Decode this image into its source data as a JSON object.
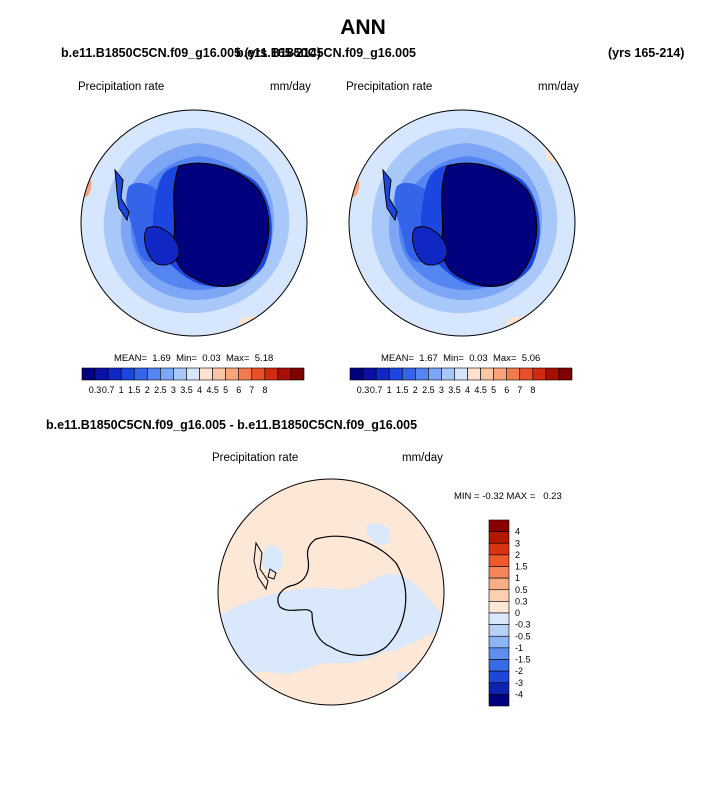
{
  "page_title": "ANN",
  "case_label_left": "b.e11.B1850C5CN.f09_g16.005 (yrs 165-214)",
  "case_label_right": "b.e11.B1850C5CN.f09_g16.005",
  "years_right": "(yrs 165-214)",
  "diff_case_label": "b.e11.B1850C5CN.f09_g16.005 - b.e11.B1850C5CN.f09_g16.005",
  "panels": [
    {
      "variable": "Precipitation rate",
      "units": "mm/day",
      "mean_label": "MEAN=",
      "mean": "1.69",
      "min_label": "Min=",
      "min": "0.03",
      "max_label": "Max=",
      "max": "5.18"
    },
    {
      "variable": "Precipitation rate",
      "units": "mm/day",
      "mean_label": "MEAN=",
      "mean": "1.67",
      "min_label": "Min=",
      "min": "0.03",
      "max_label": "Max=",
      "max": "5.06"
    }
  ],
  "diff_panel": {
    "variable": "Precipitation rate",
    "units": "mm/day",
    "min_label": "MIN =",
    "min": "-0.32",
    "max_label": "MAX =",
    "max": "0.23"
  },
  "colorbar_abs": {
    "labels": [
      "0.3",
      "0.7",
      "1",
      "1.5",
      "2",
      "2.5",
      "3",
      "3.5",
      "4",
      "4.5",
      "5",
      "6",
      "7",
      "8"
    ],
    "colors": [
      "#00007f",
      "#0a0fa6",
      "#1127c4",
      "#1c46e0",
      "#3464ea",
      "#5485f0",
      "#7ea6f6",
      "#a9c8fa",
      "#d6e6fc",
      "#fde3cf",
      "#fbc6a4",
      "#f9a47b",
      "#f27a4e",
      "#e8502a",
      "#d02b10",
      "#a90f00",
      "#7e0000"
    ]
  },
  "colorbar_diff": {
    "labels": [
      "4",
      "3",
      "2",
      "1.5",
      "1",
      "0.5",
      "0.3",
      "0",
      "-0.3",
      "-0.5",
      "-1",
      "-1.5",
      "-2",
      "-3",
      "-4"
    ],
    "colors": [
      "#8a0000",
      "#b31700",
      "#d83310",
      "#ef5a2a",
      "#f5845a",
      "#f9ad86",
      "#fbd0b2",
      "#fde7d6",
      "#d9e8fb",
      "#b7d1f8",
      "#8db4f4",
      "#5f8fee",
      "#3a6be6",
      "#1f46d6",
      "#0d23b0",
      "#00007f"
    ]
  },
  "chart_data": [
    {
      "type": "heatmap",
      "projection": "south-polar stereographic",
      "title": "Precipitation rate",
      "units": "mm/day",
      "mean": 1.69,
      "min": 0.03,
      "max": 5.18
    },
    {
      "type": "heatmap",
      "projection": "south-polar stereographic",
      "title": "Precipitation rate",
      "units": "mm/day",
      "mean": 1.67,
      "min": 0.03,
      "max": 5.06
    },
    {
      "type": "heatmap",
      "projection": "south-polar stereographic",
      "title": "Precipitation rate",
      "units": "mm/day",
      "min": -0.32,
      "max": 0.23
    }
  ]
}
